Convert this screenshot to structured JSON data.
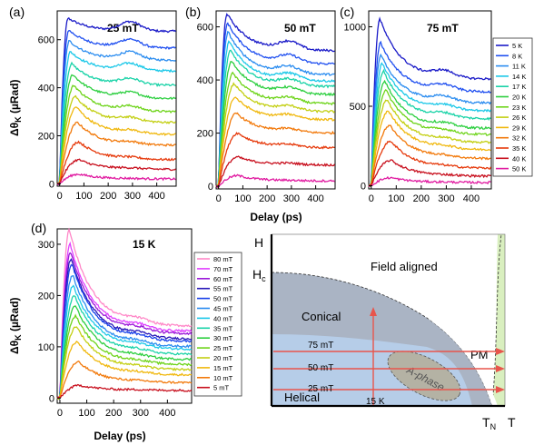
{
  "panel_tags": [
    "(a)",
    "(b)",
    "(c)",
    "(d)"
  ],
  "shared": {
    "ylabel": "Δθ",
    "ylabel_sub": "K",
    "ylabel_unit": " (µRad)",
    "xlabel": "Delay (ps)"
  },
  "chart_data": [
    {
      "id": "a",
      "type": "line",
      "tag": "(a)",
      "title": "25 mT",
      "xlabel": "",
      "ylabel": "Δθ_K (µRad)",
      "xlim": [
        -10,
        480
      ],
      "ylim": [
        -10,
        720
      ],
      "xticks": [
        0,
        100,
        200,
        300,
        400
      ],
      "yticks": [
        0,
        200,
        400,
        600
      ],
      "legend_ref": "temperature",
      "series": [
        {
          "name": "5 K",
          "color": "#1a1ac8",
          "peak_t": 35,
          "peak": 690,
          "plateau": 635
        },
        {
          "name": "8 K",
          "color": "#1f4ff0",
          "peak_t": 38,
          "peak": 640,
          "plateau": 565
        },
        {
          "name": "11 K",
          "color": "#2a8cf0",
          "peak_t": 40,
          "peak": 595,
          "plateau": 515
        },
        {
          "name": "14 K",
          "color": "#1cc8e8",
          "peak_t": 45,
          "peak": 550,
          "plateau": 470
        },
        {
          "name": "17 K",
          "color": "#1ad3a8",
          "peak_t": 50,
          "peak": 500,
          "plateau": 410
        },
        {
          "name": "20 K",
          "color": "#2dcf40",
          "peak_t": 55,
          "peak": 455,
          "plateau": 355
        },
        {
          "name": "23 K",
          "color": "#6ed41a",
          "peak_t": 60,
          "peak": 410,
          "plateau": 300
        },
        {
          "name": "26 K",
          "color": "#c3cf12",
          "peak_t": 65,
          "peak": 365,
          "plateau": 255
        },
        {
          "name": "29 K",
          "color": "#f0b80e",
          "peak_t": 70,
          "peak": 320,
          "plateau": 205
        },
        {
          "name": "32 K",
          "color": "#f27a0c",
          "peak_t": 75,
          "peak": 255,
          "plateau": 160
        },
        {
          "name": "35 K",
          "color": "#e63a0c",
          "peak_t": 80,
          "peak": 175,
          "plateau": 100
        },
        {
          "name": "40 K",
          "color": "#c8101e",
          "peak_t": 80,
          "peak": 100,
          "plateau": 60
        },
        {
          "name": "50 K",
          "color": "#e01aa0",
          "peak_t": 80,
          "peak": 40,
          "plateau": 20
        }
      ]
    },
    {
      "id": "b",
      "type": "line",
      "tag": "(b)",
      "title": "50 mT",
      "xlabel": "Delay (ps)",
      "ylabel": "",
      "xlim": [
        -10,
        480
      ],
      "ylim": [
        -10,
        660
      ],
      "xticks": [
        0,
        100,
        200,
        300,
        400
      ],
      "yticks": [
        0,
        200,
        400,
        600
      ],
      "legend_ref": "temperature",
      "series": [
        {
          "name": "5 K",
          "color": "#1a1ac8",
          "peak_t": 35,
          "peak": 650,
          "plateau": 510
        },
        {
          "name": "8 K",
          "color": "#1f4ff0",
          "peak_t": 38,
          "peak": 615,
          "plateau": 460
        },
        {
          "name": "11 K",
          "color": "#2a8cf0",
          "peak_t": 40,
          "peak": 580,
          "plateau": 420
        },
        {
          "name": "14 K",
          "color": "#1cc8e8",
          "peak_t": 45,
          "peak": 545,
          "plateau": 395
        },
        {
          "name": "17 K",
          "color": "#1ad3a8",
          "peak_t": 50,
          "peak": 510,
          "plateau": 375
        },
        {
          "name": "20 K",
          "color": "#2dcf40",
          "peak_t": 55,
          "peak": 470,
          "plateau": 345
        },
        {
          "name": "23 K",
          "color": "#6ed41a",
          "peak_t": 60,
          "peak": 425,
          "plateau": 310
        },
        {
          "name": "26 K",
          "color": "#c3cf12",
          "peak_t": 65,
          "peak": 385,
          "plateau": 280
        },
        {
          "name": "29 K",
          "color": "#f0b80e",
          "peak_t": 70,
          "peak": 335,
          "plateau": 250
        },
        {
          "name": "32 K",
          "color": "#f27a0c",
          "peak_t": 75,
          "peak": 275,
          "plateau": 200
        },
        {
          "name": "35 K",
          "color": "#e63a0c",
          "peak_t": 80,
          "peak": 200,
          "plateau": 145
        },
        {
          "name": "40 K",
          "color": "#c8101e",
          "peak_t": 80,
          "peak": 110,
          "plateau": 80
        },
        {
          "name": "50 K",
          "color": "#e01aa0",
          "peak_t": 80,
          "peak": 40,
          "plateau": 20
        }
      ]
    },
    {
      "id": "c",
      "type": "line",
      "tag": "(c)",
      "title": "75 mT",
      "xlabel": "",
      "ylabel": "",
      "xlim": [
        -10,
        480
      ],
      "ylim": [
        -20,
        1100
      ],
      "xticks": [
        0,
        100,
        200,
        300,
        400
      ],
      "yticks": [
        0,
        500,
        1000
      ],
      "legend_ref": "temperature",
      "series": [
        {
          "name": "5 K",
          "color": "#1a1ac8",
          "peak_t": 35,
          "peak": 1050,
          "plateau": 670
        },
        {
          "name": "8 K",
          "color": "#1f4ff0",
          "peak_t": 38,
          "peak": 900,
          "plateau": 590
        },
        {
          "name": "11 K",
          "color": "#2a8cf0",
          "peak_t": 40,
          "peak": 820,
          "plateau": 520
        },
        {
          "name": "14 K",
          "color": "#1cc8e8",
          "peak_t": 45,
          "peak": 770,
          "plateau": 470
        },
        {
          "name": "17 K",
          "color": "#1ad3a8",
          "peak_t": 50,
          "peak": 720,
          "plateau": 420
        },
        {
          "name": "20 K",
          "color": "#2dcf40",
          "peak_t": 55,
          "peak": 660,
          "plateau": 360
        },
        {
          "name": "23 K",
          "color": "#6ed41a",
          "peak_t": 60,
          "peak": 600,
          "plateau": 320
        },
        {
          "name": "26 K",
          "color": "#c3cf12",
          "peak_t": 65,
          "peak": 540,
          "plateau": 270
        },
        {
          "name": "29 K",
          "color": "#f0b80e",
          "peak_t": 70,
          "peak": 470,
          "plateau": 225
        },
        {
          "name": "32 K",
          "color": "#f27a0c",
          "peak_t": 75,
          "peak": 380,
          "plateau": 170
        },
        {
          "name": "35 K",
          "color": "#e63a0c",
          "peak_t": 80,
          "peak": 280,
          "plateau": 110
        },
        {
          "name": "40 K",
          "color": "#c8101e",
          "peak_t": 80,
          "peak": 160,
          "plateau": 60
        },
        {
          "name": "50 K",
          "color": "#e01aa0",
          "peak_t": 80,
          "peak": 50,
          "plateau": 20
        }
      ]
    },
    {
      "id": "d",
      "type": "line",
      "tag": "(d)",
      "title": "15 K",
      "xlabel": "Delay (ps)",
      "ylabel": "Δθ_K (µRad)",
      "xlim": [
        -10,
        490
      ],
      "ylim": [
        -10,
        330
      ],
      "xticks": [
        0,
        100,
        200,
        300,
        400
      ],
      "yticks": [
        0,
        100,
        200,
        300
      ],
      "legend_ref": "field",
      "series": [
        {
          "name": "80 mT",
          "color": "#ff88c8",
          "peak_t": 35,
          "peak": 330,
          "plateau": 140
        },
        {
          "name": "70 mT",
          "color": "#e040ff",
          "peak_t": 38,
          "peak": 300,
          "plateau": 130
        },
        {
          "name": "60 mT",
          "color": "#9a18d8",
          "peak_t": 40,
          "peak": 285,
          "plateau": 125
        },
        {
          "name": "55 mT",
          "color": "#2818b8",
          "peak_t": 42,
          "peak": 272,
          "plateau": 115
        },
        {
          "name": "50 mT",
          "color": "#1840e8",
          "peak_t": 45,
          "peak": 262,
          "plateau": 110
        },
        {
          "name": "45 mT",
          "color": "#2a8cf0",
          "peak_t": 48,
          "peak": 240,
          "plateau": 100
        },
        {
          "name": "40 mT",
          "color": "#1cc8e8",
          "peak_t": 50,
          "peak": 220,
          "plateau": 95
        },
        {
          "name": "35 mT",
          "color": "#1ad3a8",
          "peak_t": 55,
          "peak": 200,
          "plateau": 85
        },
        {
          "name": "30 mT",
          "color": "#2dcf40",
          "peak_t": 58,
          "peak": 180,
          "plateau": 75
        },
        {
          "name": "25 mT",
          "color": "#6ed41a",
          "peak_t": 60,
          "peak": 160,
          "plateau": 65
        },
        {
          "name": "20 mT",
          "color": "#c3cf12",
          "peak_t": 62,
          "peak": 140,
          "plateau": 55
        },
        {
          "name": "15 mT",
          "color": "#f0b80e",
          "peak_t": 65,
          "peak": 110,
          "plateau": 45
        },
        {
          "name": "10 mT",
          "color": "#f27a0c",
          "peak_t": 70,
          "peak": 70,
          "plateau": 30
        },
        {
          "name": "5 mT",
          "color": "#c8101e",
          "peak_t": 75,
          "peak": 25,
          "plateau": 15
        }
      ]
    }
  ],
  "legend_temperature": [
    "5 K",
    "8 K",
    "11 K",
    "14 K",
    "17 K",
    "20 K",
    "23 K",
    "26 K",
    "29 K",
    "32 K",
    "35 K",
    "40 K",
    "50 K"
  ],
  "legend_field": [
    "80 mT",
    "70 mT",
    "60 mT",
    "55 mT",
    "50 mT",
    "45 mT",
    "40 mT",
    "35 mT",
    "30 mT",
    "25 mT",
    "20 mT",
    "15 mT",
    "10 mT",
    "5 mT"
  ],
  "phase_diagram": {
    "axis_h": "H",
    "axis_t": "T",
    "hc_label": "H",
    "hc_sub": "c",
    "tn_label": "T",
    "tn_sub": "N",
    "regions": {
      "field_aligned": "Field aligned",
      "conical": "Conical",
      "helical": "Helical",
      "a_phase": "A-phase",
      "pm": "PM"
    },
    "arrows": {
      "field_25": "25 mT",
      "field_50": "50 mT",
      "field_75": "75 mT",
      "temperature": "15 K"
    },
    "colors": {
      "field_aligned": "#d9efbf",
      "conical": "#aab4c4",
      "helical": "#b6cde8",
      "a_phase": "#b4b2a4",
      "arrow": "#e8554c"
    }
  }
}
